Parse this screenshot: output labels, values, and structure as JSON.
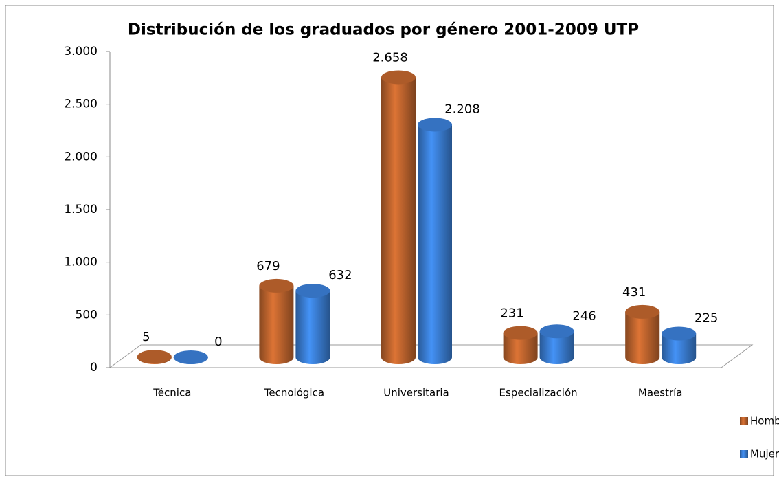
{
  "chart_data": {
    "type": "bar3d",
    "title": "Distribución de los graduados por género  2001-2009  UTP",
    "categories": [
      "Técnica",
      "Tecnológica",
      "Universitaria",
      "Especialización",
      "Maestría"
    ],
    "series": [
      {
        "name": "Hombres",
        "color": "#c0652e",
        "values": [
          5,
          679,
          2658,
          231,
          431
        ],
        "value_labels": [
          "5",
          "679",
          "2.658",
          "231",
          "431"
        ]
      },
      {
        "name": "Mujeres",
        "color": "#3b7fd6",
        "values": [
          0,
          632,
          2208,
          246,
          225
        ],
        "value_labels": [
          "0",
          "632",
          "2.208",
          "246",
          "225"
        ]
      }
    ],
    "ylim": [
      0,
      3000
    ],
    "yticks": [
      0,
      500,
      {
        "value": 1000,
        "label": "1.000"
      },
      {
        "value": 1500,
        "label": "1.500"
      },
      {
        "value": 2000,
        "label": "2.000"
      },
      {
        "value": 2500,
        "label": "2.500"
      },
      {
        "value": 3000,
        "label": "3.000"
      }
    ],
    "grid": false,
    "legend": "right"
  }
}
